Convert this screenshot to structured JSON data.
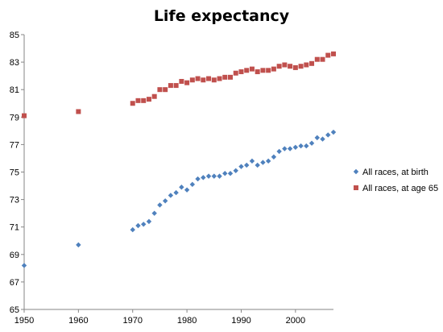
{
  "chart_data": {
    "type": "scatter",
    "title": "Life expectancy",
    "xlabel": "",
    "ylabel": "",
    "xlim": [
      1950,
      2007
    ],
    "ylim": [
      65,
      85
    ],
    "x_ticks": [
      1950,
      1960,
      1970,
      1980,
      1990,
      2000
    ],
    "y_ticks": [
      65,
      67,
      69,
      71,
      73,
      75,
      77,
      79,
      81,
      83,
      85
    ],
    "grid": false,
    "legend_position": "right",
    "series": [
      {
        "name": "All races, at birth",
        "color": "#4f81bd",
        "marker": "diamond",
        "points": [
          [
            1950,
            68.2
          ],
          [
            1960,
            69.7
          ],
          [
            1970,
            70.8
          ],
          [
            1971,
            71.1
          ],
          [
            1972,
            71.2
          ],
          [
            1973,
            71.4
          ],
          [
            1974,
            72.0
          ],
          [
            1975,
            72.6
          ],
          [
            1976,
            72.9
          ],
          [
            1977,
            73.3
          ],
          [
            1978,
            73.5
          ],
          [
            1979,
            73.9
          ],
          [
            1980,
            73.7
          ],
          [
            1981,
            74.1
          ],
          [
            1982,
            74.5
          ],
          [
            1983,
            74.6
          ],
          [
            1984,
            74.7
          ],
          [
            1985,
            74.7
          ],
          [
            1986,
            74.7
          ],
          [
            1987,
            74.9
          ],
          [
            1988,
            74.9
          ],
          [
            1989,
            75.1
          ],
          [
            1990,
            75.4
          ],
          [
            1991,
            75.5
          ],
          [
            1992,
            75.8
          ],
          [
            1993,
            75.5
          ],
          [
            1994,
            75.7
          ],
          [
            1995,
            75.8
          ],
          [
            1996,
            76.1
          ],
          [
            1997,
            76.5
          ],
          [
            1998,
            76.7
          ],
          [
            1999,
            76.7
          ],
          [
            2000,
            76.8
          ],
          [
            2001,
            76.9
          ],
          [
            2002,
            76.9
          ],
          [
            2003,
            77.1
          ],
          [
            2004,
            77.5
          ],
          [
            2005,
            77.4
          ],
          [
            2006,
            77.7
          ],
          [
            2007,
            77.9
          ]
        ]
      },
      {
        "name": "All races, at age 65",
        "color": "#c0504d",
        "marker": "square",
        "points": [
          [
            1950,
            79.1
          ],
          [
            1960,
            79.4
          ],
          [
            1970,
            80.0
          ],
          [
            1971,
            80.2
          ],
          [
            1972,
            80.2
          ],
          [
            1973,
            80.3
          ],
          [
            1974,
            80.5
          ],
          [
            1975,
            81.0
          ],
          [
            1976,
            81.0
          ],
          [
            1977,
            81.3
          ],
          [
            1978,
            81.3
          ],
          [
            1979,
            81.6
          ],
          [
            1980,
            81.5
          ],
          [
            1981,
            81.7
          ],
          [
            1982,
            81.8
          ],
          [
            1983,
            81.7
          ],
          [
            1984,
            81.8
          ],
          [
            1985,
            81.7
          ],
          [
            1986,
            81.8
          ],
          [
            1987,
            81.9
          ],
          [
            1988,
            81.9
          ],
          [
            1989,
            82.2
          ],
          [
            1990,
            82.3
          ],
          [
            1991,
            82.4
          ],
          [
            1992,
            82.5
          ],
          [
            1993,
            82.3
          ],
          [
            1994,
            82.4
          ],
          [
            1995,
            82.4
          ],
          [
            1996,
            82.5
          ],
          [
            1997,
            82.7
          ],
          [
            1998,
            82.8
          ],
          [
            1999,
            82.7
          ],
          [
            2000,
            82.6
          ],
          [
            2001,
            82.7
          ],
          [
            2002,
            82.8
          ],
          [
            2003,
            82.9
          ],
          [
            2004,
            83.2
          ],
          [
            2005,
            83.2
          ],
          [
            2006,
            83.5
          ],
          [
            2007,
            83.6
          ]
        ]
      }
    ]
  }
}
